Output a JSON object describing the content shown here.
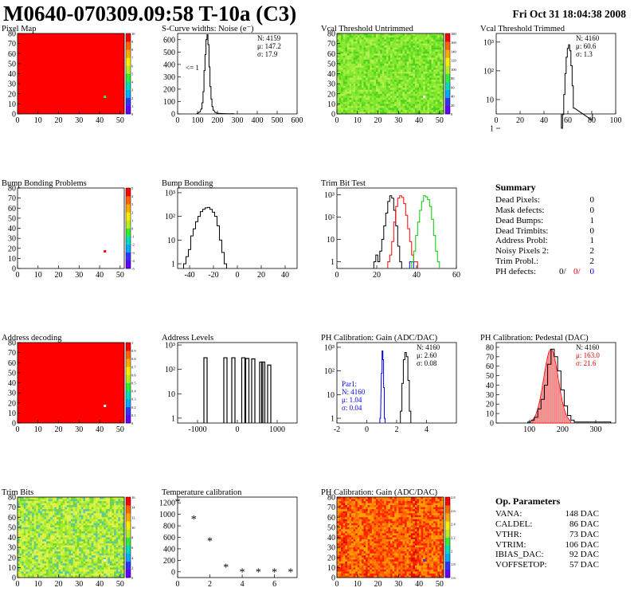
{
  "header": {
    "title": "M0640-070309.09:58 T-10a (C3)",
    "date": "Fri Oct 31 18:04:38 2008"
  },
  "panels": [
    {
      "id": "pixel-map",
      "title": "Pixel Map",
      "type": "heatmap",
      "xticks": [
        "0",
        "10",
        "20",
        "30",
        "40",
        "50"
      ],
      "yticks": [
        "0",
        "10",
        "20",
        "30",
        "40",
        "50",
        "60",
        "70",
        "80"
      ],
      "base_color": "#ff0000",
      "zticks": [
        "0",
        "1",
        "2",
        "3",
        "4",
        "5",
        "6",
        "7",
        "8",
        "9",
        "10"
      ],
      "highlight": {
        "x": 42,
        "y": 17,
        "color": "#33ff33"
      }
    },
    {
      "id": "scurve",
      "title": "S-Curve widths: Noise (e⁻)",
      "type": "hist",
      "xticks": [
        "0",
        "100",
        "200",
        "300",
        "400",
        "500",
        "600"
      ],
      "yticks": [
        "0",
        "100",
        "200",
        "300",
        "400",
        "500",
        "600"
      ],
      "xlim": [
        0,
        600
      ],
      "ylim": [
        0,
        650
      ],
      "stats": [
        "N: 4159",
        "μ: 147.2",
        "σ: 17.9"
      ],
      "note": "<= 1"
    },
    {
      "id": "vcal-untrimmed",
      "title": "Vcal Threshold Untrimmed",
      "type": "heatmap",
      "xticks": [
        "0",
        "10",
        "20",
        "30",
        "40",
        "50"
      ],
      "yticks": [
        "0",
        "10",
        "20",
        "30",
        "40",
        "50",
        "60",
        "70",
        "80"
      ],
      "base_color": "#88e830",
      "zticks": [
        "0",
        "20",
        "40",
        "60",
        "80",
        "100",
        "120",
        "140",
        "160",
        "180"
      ],
      "highlight": {
        "x": 42,
        "y": 17,
        "color": "#ffffff"
      }
    },
    {
      "id": "vcal-trimmed",
      "title": "Vcal Threshold Trimmed",
      "type": "loghist",
      "xticks": [
        "0",
        "20",
        "40",
        "60",
        "80",
        "100"
      ],
      "yticks": [
        "1",
        "10",
        "10²",
        "10³"
      ],
      "xlim": [
        0,
        100
      ],
      "ylim_log": [
        0.5,
        3.3
      ],
      "stats": [
        "N: 4160",
        "μ: 60.6",
        "σ: 1.3"
      ]
    },
    {
      "id": "bump-problems",
      "title": "Bump Bonding Problems",
      "type": "heatmap",
      "xticks": [
        "0",
        "10",
        "20",
        "30",
        "40",
        "50"
      ],
      "yticks": [
        "0",
        "10",
        "20",
        "30",
        "40",
        "50",
        "60",
        "70",
        "80"
      ],
      "base_color": "#ffffff",
      "zticks": [
        "-5",
        "-4",
        "-3",
        "-2",
        "-1",
        "0",
        "1",
        "2",
        "3",
        "4",
        "5"
      ],
      "highlight": {
        "x": 42,
        "y": 17,
        "color": "#ff0000"
      }
    },
    {
      "id": "bump-bonding",
      "title": "Bump Bonding",
      "type": "loghist",
      "xticks": [
        "-40",
        "-20",
        "0",
        "20",
        "40"
      ],
      "yticks": [
        "1",
        "10",
        "10²",
        "10³"
      ],
      "xlim": [
        -50,
        50
      ],
      "ylim_log": [
        -0.2,
        3.2
      ]
    },
    {
      "id": "trim-bit",
      "title": "Trim Bit Test",
      "type": "loghist",
      "xticks": [
        "0",
        "20",
        "40",
        "60"
      ],
      "yticks": [
        "1",
        "10",
        "10²",
        "10³"
      ],
      "xlim": [
        0,
        60
      ],
      "ylim_log": [
        -0.3,
        3.3
      ]
    },
    {
      "id": "address-decoding",
      "title": "Address decoding",
      "type": "heatmap",
      "xticks": [
        "0",
        "10",
        "20",
        "30",
        "40",
        "50"
      ],
      "yticks": [
        "0",
        "10",
        "20",
        "30",
        "40",
        "50",
        "60",
        "70",
        "80"
      ],
      "base_color": "#ff0000",
      "zticks": [
        "0",
        "0.1",
        "0.2",
        "0.3",
        "0.4",
        "0.5",
        "0.6",
        "0.7",
        "0.8",
        "0.9",
        "1"
      ],
      "highlight": {
        "x": 42,
        "y": 17,
        "color": "#ffffff"
      }
    },
    {
      "id": "address-levels",
      "title": "Address Levels",
      "type": "loghist",
      "xticks": [
        "-1000",
        "0",
        "1000"
      ],
      "yticks": [
        "1",
        "10",
        "10²",
        "10³"
      ],
      "xlim": [
        -1500,
        1500
      ],
      "ylim_log": [
        -0.2,
        3.1
      ]
    },
    {
      "id": "ph-gain",
      "title": "PH Calibration: Gain (ADC/DAC)",
      "type": "loghist",
      "xticks": [
        "-2",
        "0",
        "2",
        "4"
      ],
      "yticks": [
        "1",
        "10",
        "10²",
        "10³"
      ],
      "xlim": [
        -2,
        6
      ],
      "ylim_log": [
        -0.2,
        3.2
      ],
      "stats": [
        "N: 4160",
        "μ: 2.60",
        "σ: 0.08"
      ],
      "par1": [
        "Par1:",
        "N: 4160",
        "μ: 1.04",
        "σ: 0.04"
      ]
    },
    {
      "id": "ph-pedestal",
      "title": "PH Calibration: Pedestal (DAC)",
      "type": "hist",
      "xticks": [
        "100",
        "200",
        "300"
      ],
      "yticks": [
        "0",
        "10",
        "20",
        "30",
        "40",
        "50",
        "60",
        "70",
        "80"
      ],
      "xlim": [
        0,
        360
      ],
      "ylim": [
        0,
        85
      ],
      "stats": [
        "N: 4160"
      ],
      "stats_red": [
        "μ: 163.0",
        "σ: 21.6"
      ]
    },
    {
      "id": "trim-bits",
      "title": "Trim Bits",
      "type": "heatmap",
      "xticks": [
        "0",
        "10",
        "20",
        "30",
        "40",
        "50"
      ],
      "yticks": [
        "0",
        "10",
        "20",
        "30",
        "40",
        "50",
        "60",
        "70",
        "80"
      ],
      "base_color": "#9be830",
      "zticks": [
        "0",
        "2",
        "4",
        "6",
        "8",
        "10",
        "12",
        "14",
        "16"
      ],
      "highlight": {
        "x": 42,
        "y": 17,
        "color": "#ffffff"
      }
    },
    {
      "id": "temperature",
      "title": "Temperature calibration",
      "type": "markers",
      "xticks": [
        "0",
        "2",
        "4",
        "6"
      ],
      "yticks": [
        "0",
        "200",
        "400",
        "600",
        "800",
        "1000",
        "1200"
      ],
      "xlim": [
        0,
        7.4
      ],
      "ylim": [
        -100,
        1300
      ]
    },
    {
      "id": "ph-gain-map",
      "title": "PH Calibration: Gain (ADC/DAC)",
      "type": "heatmap",
      "xticks": [
        "0",
        "10",
        "20",
        "30",
        "40",
        "50"
      ],
      "yticks": [
        "0",
        "10",
        "20",
        "30",
        "40",
        "50",
        "60",
        "70",
        "80"
      ],
      "base_color": "#ff6000",
      "zticks": [
        "1.6",
        "1.8",
        "2",
        "2.2",
        "2.4",
        "2.6",
        "2.8"
      ],
      "highlight": {
        "x": 42,
        "y": 17,
        "color": "#3333ff"
      }
    }
  ],
  "chart_data": [
    {
      "type": "histogram",
      "panel": "scurve",
      "x": [
        100,
        110,
        120,
        125,
        130,
        135,
        140,
        145,
        150,
        155,
        160,
        165,
        170,
        175,
        180,
        190,
        200,
        220,
        250,
        280
      ],
      "y": [
        5,
        15,
        40,
        90,
        180,
        350,
        480,
        600,
        640,
        560,
        380,
        220,
        120,
        60,
        30,
        12,
        6,
        3,
        1,
        1
      ]
    },
    {
      "type": "histogram",
      "panel": "vcal-trimmed",
      "x": [
        55,
        56,
        57,
        58,
        59,
        60,
        61,
        62,
        63,
        64,
        65,
        80
      ],
      "y": [
        1,
        3,
        15,
        80,
        300,
        600,
        800,
        500,
        150,
        30,
        5,
        2
      ]
    },
    {
      "type": "histogram",
      "panel": "bump-bonding",
      "x": [
        -44,
        -42,
        -40,
        -38,
        -36,
        -34,
        -32,
        -30,
        -28,
        -26,
        -24,
        -22,
        -20,
        -18,
        -16,
        -14,
        -12,
        -10
      ],
      "y": [
        1,
        2,
        4,
        15,
        30,
        60,
        100,
        160,
        200,
        230,
        240,
        200,
        150,
        100,
        40,
        10,
        3,
        1
      ]
    },
    {
      "type": "histogram",
      "panel": "trim-bit",
      "series": [
        {
          "color": "#000000",
          "x": [
            19,
            20,
            21,
            22,
            23,
            24,
            25,
            26,
            27,
            28,
            29,
            30,
            31,
            32
          ],
          "y": [
            1,
            2,
            1,
            3,
            10,
            40,
            150,
            500,
            900,
            700,
            200,
            40,
            5,
            1
          ]
        },
        {
          "color": "#ff0000",
          "x": [
            26,
            27,
            28,
            29,
            30,
            31,
            32,
            33,
            34,
            35,
            36,
            37,
            38,
            39,
            40
          ],
          "y": [
            1,
            2,
            8,
            60,
            300,
            700,
            900,
            750,
            400,
            120,
            30,
            8,
            2,
            1,
            1
          ]
        },
        {
          "color": "#0000ff",
          "x": [
            37,
            38
          ],
          "y": [
            1,
            1
          ]
        },
        {
          "color": "#00cc00",
          "x": [
            38,
            39,
            40,
            41,
            42,
            43,
            44,
            45,
            46,
            47,
            48,
            49,
            50,
            51
          ],
          "y": [
            1,
            3,
            15,
            60,
            200,
            500,
            900,
            800,
            600,
            300,
            80,
            15,
            3,
            1
          ]
        }
      ]
    },
    {
      "type": "histogram",
      "panel": "address-levels",
      "x": [
        -800,
        -300,
        -100,
        150,
        250,
        400,
        600,
        650,
        800
      ],
      "y": [
        300,
        300,
        300,
        300,
        280,
        270,
        200,
        200,
        150
      ]
    },
    {
      "type": "histogram",
      "panel": "ph-gain",
      "series": [
        {
          "color": "#000000",
          "x": [
            2.3,
            2.4,
            2.5,
            2.6,
            2.7,
            2.8,
            2.9
          ],
          "y": [
            2,
            30,
            300,
            600,
            400,
            40,
            2
          ]
        },
        {
          "color": "#0000ff",
          "x": [
            0.9,
            1.0,
            1.05,
            1.1,
            1.15,
            1.2
          ],
          "y": [
            1,
            80,
            700,
            300,
            20,
            1
          ]
        }
      ]
    },
    {
      "type": "histogram",
      "panel": "ph-pedestal",
      "x": [
        100,
        110,
        120,
        130,
        140,
        150,
        160,
        170,
        180,
        190,
        200,
        210,
        220,
        230,
        240,
        340
      ],
      "y": [
        1,
        3,
        6,
        15,
        25,
        40,
        62,
        78,
        70,
        55,
        35,
        18,
        8,
        3,
        1,
        1
      ]
    },
    {
      "type": "scatter",
      "panel": "temperature",
      "marker": "star",
      "x": [
        0,
        1,
        2,
        3,
        4,
        5,
        6,
        7
      ],
      "y": [
        1220,
        920,
        540,
        80,
        -5,
        -5,
        -5,
        -5
      ]
    }
  ],
  "summary": {
    "title": "Summary",
    "rows": [
      {
        "label": "Dead Pixels:",
        "value": "0"
      },
      {
        "label": "Mask defects:",
        "value": "0"
      },
      {
        "label": "Dead Bumps:",
        "value": "1"
      },
      {
        "label": "Dead Trimbits:",
        "value": "0"
      },
      {
        "label": "Address Probl:",
        "value": "1"
      },
      {
        "label": "Noisy Pixels 2:",
        "value": "2"
      },
      {
        "label": "Trim Probl.:",
        "value": "2"
      }
    ],
    "ph_defects": {
      "label": "PH defects:",
      "v1": "0/",
      "v2": "0/",
      "v3": "0"
    }
  },
  "op_params": {
    "title": "Op. Parameters",
    "rows": [
      {
        "label": "VANA:",
        "value": "148 DAC"
      },
      {
        "label": "CALDEL:",
        "value": "86 DAC"
      },
      {
        "label": "VTHR:",
        "value": "73 DAC"
      },
      {
        "label": "VTRIM:",
        "value": "106 DAC"
      },
      {
        "label": "IBIAS_DAC:",
        "value": "92 DAC"
      },
      {
        "label": "VOFFSETOP:",
        "value": "57 DAC"
      }
    ]
  }
}
